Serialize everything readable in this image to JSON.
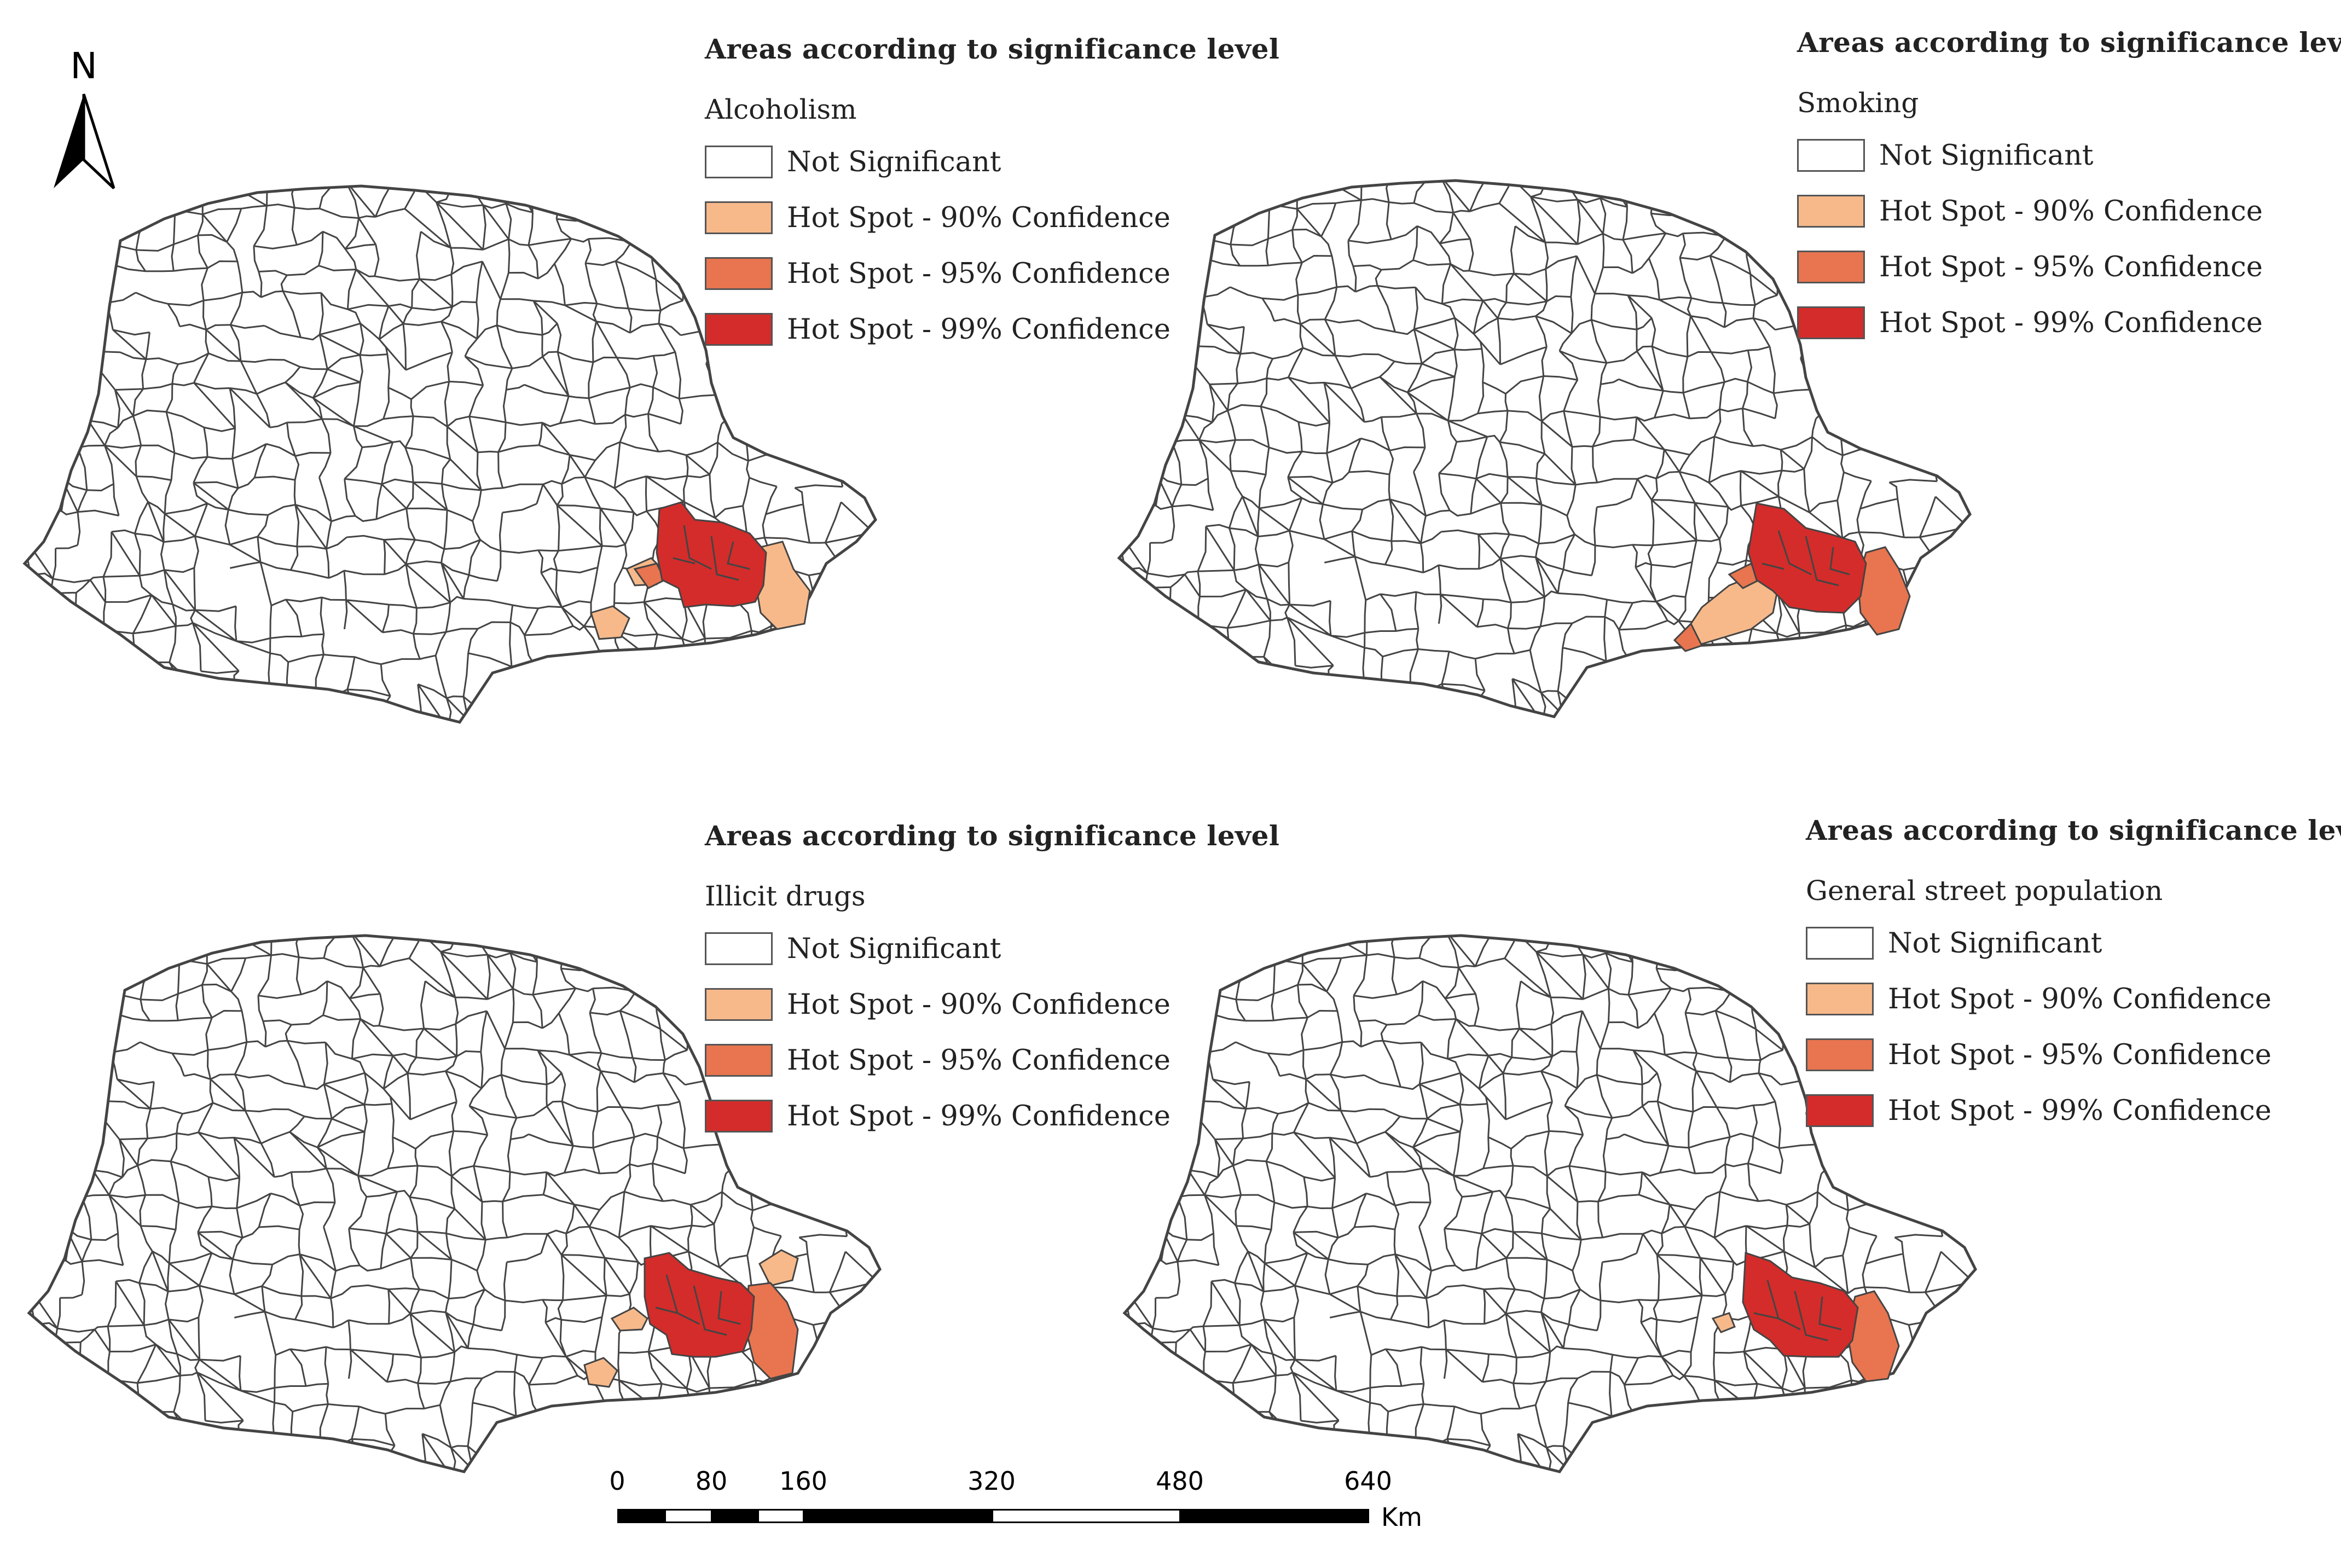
{
  "colors": {
    "not_significant": "#ffffff",
    "hot_90": "#f7b98a",
    "hot_95": "#e8754f",
    "hot_99": "#d42c2a",
    "boundary": "#444444"
  },
  "north_arrow": {
    "label": "N"
  },
  "panels": [
    {
      "legend_title": "Areas according to significance level",
      "variable": "Alcoholism",
      "legend": [
        {
          "label": "Not Significant",
          "level": "not_significant"
        },
        {
          "label": "Hot Spot - 90% Confidence",
          "level": "hot_90"
        },
        {
          "label": "Hot Spot - 95% Confidence",
          "level": "hot_95"
        },
        {
          "label": "Hot Spot - 99% Confidence",
          "level": "hot_99"
        }
      ]
    },
    {
      "legend_title": "Areas according to significance level",
      "variable": "Smoking",
      "legend": [
        {
          "label": "Not Significant",
          "level": "not_significant"
        },
        {
          "label": "Hot Spot - 90% Confidence",
          "level": "hot_90"
        },
        {
          "label": "Hot Spot - 95% Confidence",
          "level": "hot_95"
        },
        {
          "label": "Hot Spot - 99% Confidence",
          "level": "hot_99"
        }
      ]
    },
    {
      "legend_title": "Areas according to significance level",
      "variable": "Illicit drugs",
      "legend": [
        {
          "label": "Not Significant",
          "level": "not_significant"
        },
        {
          "label": "Hot Spot - 90% Confidence",
          "level": "hot_90"
        },
        {
          "label": "Hot Spot - 95% Confidence",
          "level": "hot_95"
        },
        {
          "label": "Hot Spot - 99% Confidence",
          "level": "hot_99"
        }
      ]
    },
    {
      "legend_title": "Areas according to significance level",
      "variable": "General street population",
      "legend": [
        {
          "label": "Not Significant",
          "level": "not_significant"
        },
        {
          "label": "Hot Spot - 90% Confidence",
          "level": "hot_90"
        },
        {
          "label": "Hot Spot - 95% Confidence",
          "level": "hot_95"
        },
        {
          "label": "Hot Spot - 99% Confidence",
          "level": "hot_99"
        }
      ]
    }
  ],
  "scale_bar": {
    "ticks": [
      "0",
      "80",
      "160",
      "320",
      "480",
      "640"
    ],
    "unit": "Km"
  }
}
